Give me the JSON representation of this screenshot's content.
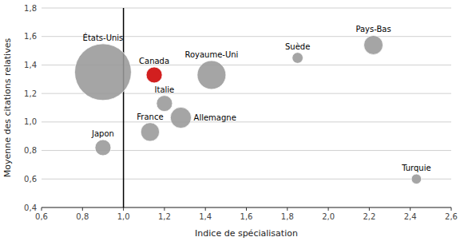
{
  "chart_data": {
    "type": "scatter",
    "xlabel": "Indice de spécialisation",
    "ylabel": "Moyenne des citations relatives",
    "labels": [
      "États-Unis",
      "Canada",
      "Royaume-Uni",
      "Pays-Bas",
      "Suède",
      "Italie",
      "Allemagne",
      "France",
      "Japon",
      "Turquie"
    ],
    "x": [
      0.9,
      1.15,
      1.43,
      2.22,
      1.85,
      1.2,
      1.28,
      1.13,
      0.9,
      2.43
    ],
    "values": [
      1.35,
      1.33,
      1.33,
      1.54,
      1.45,
      1.13,
      1.03,
      0.93,
      0.82,
      0.6
    ],
    "sizes": [
      3500,
      280,
      900,
      400,
      130,
      280,
      480,
      380,
      280,
      110
    ],
    "colors": [
      "#999999",
      "#cc0000",
      "#999999",
      "#999999",
      "#999999",
      "#999999",
      "#999999",
      "#999999",
      "#999999",
      "#999999"
    ],
    "vline_x": 1.0,
    "xlim": [
      0.6,
      2.6
    ],
    "ylim": [
      0.4,
      1.8
    ],
    "xticks": [
      {
        "value": 0.6,
        "label": "0,6"
      },
      {
        "value": 0.8,
        "label": "0,8"
      },
      {
        "value": 1.0,
        "label": "1,0"
      },
      {
        "value": 1.2,
        "label": "1,2"
      },
      {
        "value": 1.4,
        "label": "1,4"
      },
      {
        "value": 1.6,
        "label": "1,6"
      },
      {
        "value": 1.8,
        "label": "1,8"
      },
      {
        "value": 2.0,
        "label": "2,0"
      },
      {
        "value": 2.2,
        "label": "2,2"
      },
      {
        "value": 2.4,
        "label": "2,4"
      },
      {
        "value": 2.6,
        "label": "2,6"
      }
    ],
    "yticks": [
      {
        "value": 0.4,
        "label": "0,4"
      },
      {
        "value": 0.6,
        "label": "0,6"
      },
      {
        "value": 0.8,
        "label": "0,8"
      },
      {
        "value": 1.0,
        "label": "1,0"
      },
      {
        "value": 1.2,
        "label": "1,2"
      },
      {
        "value": 1.4,
        "label": "1,4"
      },
      {
        "value": 1.6,
        "label": "1,6"
      },
      {
        "value": 1.8,
        "label": "1,8"
      }
    ],
    "grid": true
  }
}
